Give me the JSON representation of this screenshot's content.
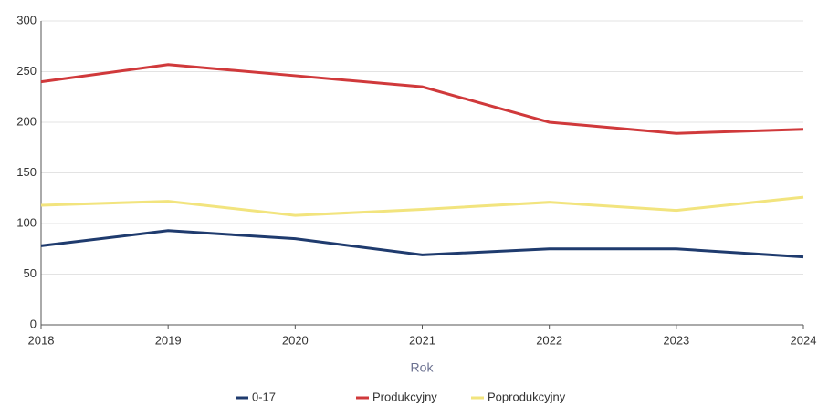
{
  "chart_data": {
    "type": "line",
    "x_label": "Rok",
    "x": [
      2018,
      2019,
      2020,
      2021,
      2022,
      2023,
      2024
    ],
    "xlim": [
      2018,
      2024
    ],
    "xticks": [
      2018,
      2019,
      2020,
      2021,
      2022,
      2023,
      2024
    ],
    "ylim": [
      0,
      300
    ],
    "yticks": [
      0,
      50,
      100,
      150,
      200,
      250,
      300
    ],
    "grid": true,
    "legend": "bottom",
    "series": [
      {
        "name": "0-17",
        "color": "#1f3b6e",
        "values": [
          78,
          93,
          85,
          69,
          75,
          75,
          67
        ]
      },
      {
        "name": "Produkcyjny",
        "color": "#d0393b",
        "values": [
          240,
          257,
          246,
          235,
          200,
          189,
          193
        ]
      },
      {
        "name": "Poprodukcyjny",
        "color": "#f2e47e",
        "values": [
          118,
          122,
          108,
          114,
          121,
          113,
          126
        ]
      }
    ]
  }
}
